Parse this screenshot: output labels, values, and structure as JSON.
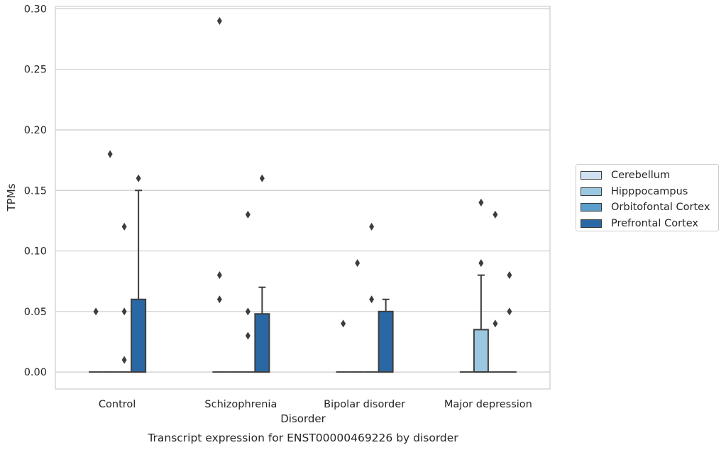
{
  "chart_data": {
    "type": "box",
    "title": "Transcript expression for ENST00000469226 by disorder",
    "xlabel": "Disorder",
    "ylabel": "TPMs",
    "ylim": [
      -0.014,
      0.302
    ],
    "yticks": [
      "0.00",
      "0.05",
      "0.10",
      "0.15",
      "0.20",
      "0.25",
      "0.30"
    ],
    "ytick_values": [
      0,
      0.05,
      0.1,
      0.15,
      0.2,
      0.25,
      0.3
    ],
    "categories": [
      "Control",
      "Schizophrenia",
      "Bipolar disorder",
      "Major depression"
    ],
    "grid": true,
    "legend_position": "right",
    "series": [
      {
        "name": "Cerebellum",
        "color": "#d0e1f2",
        "boxes": [
          {
            "q1": 0,
            "median": 0,
            "q3": 0,
            "whisker_low": 0,
            "whisker_high": 0,
            "outliers": [
              0.05
            ]
          },
          {
            "q1": 0,
            "median": 0,
            "q3": 0,
            "whisker_low": 0,
            "whisker_high": 0,
            "outliers": [
              0.29,
              0.08,
              0.06
            ]
          },
          {
            "q1": 0,
            "median": 0,
            "q3": 0,
            "whisker_low": 0,
            "whisker_high": 0,
            "outliers": [
              0.04
            ]
          },
          {
            "q1": 0,
            "median": 0,
            "q3": 0,
            "whisker_low": 0,
            "whisker_high": 0,
            "outliers": []
          }
        ]
      },
      {
        "name": "Hipppocampus",
        "color": "#9ac8e0",
        "boxes": [
          {
            "q1": 0,
            "median": 0,
            "q3": 0,
            "whisker_low": 0,
            "whisker_high": 0,
            "outliers": [
              0.18
            ]
          },
          {
            "q1": 0,
            "median": 0,
            "q3": 0,
            "whisker_low": 0,
            "whisker_high": 0,
            "outliers": []
          },
          {
            "q1": 0,
            "median": 0,
            "q3": 0,
            "whisker_low": 0,
            "whisker_high": 0,
            "outliers": [
              0.09
            ]
          },
          {
            "q1": 0,
            "median": 0,
            "q3": 0.035,
            "whisker_low": 0,
            "whisker_high": 0.08,
            "outliers": [
              0.14,
              0.09
            ]
          }
        ]
      },
      {
        "name": "Orbitofontal Cortex",
        "color": "#5b9ecc",
        "boxes": [
          {
            "q1": 0,
            "median": 0,
            "q3": 0,
            "whisker_low": 0,
            "whisker_high": 0,
            "outliers": [
              0.12,
              0.05,
              0.01
            ]
          },
          {
            "q1": 0,
            "median": 0,
            "q3": 0,
            "whisker_low": 0,
            "whisker_high": 0,
            "outliers": [
              0.13,
              0.05,
              0.03
            ]
          },
          {
            "q1": 0,
            "median": 0,
            "q3": 0,
            "whisker_low": 0,
            "whisker_high": 0,
            "outliers": [
              0.12,
              0.06
            ]
          },
          {
            "q1": 0,
            "median": 0,
            "q3": 0,
            "whisker_low": 0,
            "whisker_high": 0,
            "outliers": [
              0.13,
              0.04
            ]
          }
        ]
      },
      {
        "name": "Prefrontal Cortex",
        "color": "#2a68a5",
        "boxes": [
          {
            "q1": 0,
            "median": 0,
            "q3": 0.06,
            "whisker_low": 0,
            "whisker_high": 0.15,
            "outliers": [
              0.16
            ]
          },
          {
            "q1": 0,
            "median": 0,
            "q3": 0.048,
            "whisker_low": 0,
            "whisker_high": 0.07,
            "outliers": [
              0.16
            ]
          },
          {
            "q1": 0,
            "median": 0,
            "q3": 0.05,
            "whisker_low": 0,
            "whisker_high": 0.06,
            "outliers": []
          },
          {
            "q1": 0,
            "median": 0,
            "q3": 0,
            "whisker_low": 0,
            "whisker_high": 0,
            "outliers": [
              0.08,
              0.05
            ]
          }
        ]
      }
    ]
  }
}
